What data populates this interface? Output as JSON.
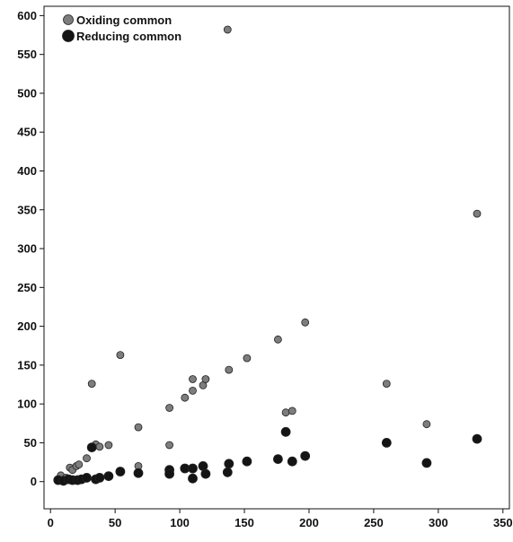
{
  "chart_data": {
    "type": "scatter",
    "title": "",
    "xlabel": "",
    "ylabel": "",
    "xlim": [
      -5,
      355
    ],
    "ylim": [
      -35,
      612
    ],
    "x_ticks": [
      0,
      50,
      100,
      150,
      200,
      250,
      300,
      350
    ],
    "y_ticks": [
      0,
      50,
      100,
      150,
      200,
      250,
      300,
      350,
      400,
      450,
      500,
      550,
      600
    ],
    "grid": false,
    "legend": {
      "position": "top-left",
      "entries": [
        "Oxiding common",
        "Reducing common"
      ]
    },
    "series": [
      {
        "name": "Oxiding common",
        "color": "#7d7d7d",
        "points": [
          [
            8,
            8
          ],
          [
            12,
            5
          ],
          [
            15,
            18
          ],
          [
            17,
            15
          ],
          [
            20,
            20
          ],
          [
            22,
            22
          ],
          [
            28,
            30
          ],
          [
            32,
            126
          ],
          [
            35,
            48
          ],
          [
            38,
            45
          ],
          [
            45,
            47
          ],
          [
            54,
            163
          ],
          [
            68,
            70
          ],
          [
            68,
            20
          ],
          [
            92,
            95
          ],
          [
            92,
            47
          ],
          [
            104,
            108
          ],
          [
            110,
            132
          ],
          [
            110,
            117
          ],
          [
            118,
            124
          ],
          [
            120,
            132
          ],
          [
            137,
            582
          ],
          [
            138,
            144
          ],
          [
            152,
            159
          ],
          [
            176,
            183
          ],
          [
            182,
            89
          ],
          [
            187,
            91
          ],
          [
            197,
            205
          ],
          [
            260,
            126
          ],
          [
            291,
            74
          ],
          [
            330,
            345
          ]
        ]
      },
      {
        "name": "Reducing common",
        "color": "#141414",
        "points": [
          [
            6,
            2
          ],
          [
            10,
            1
          ],
          [
            14,
            3
          ],
          [
            17,
            2
          ],
          [
            21,
            2
          ],
          [
            24,
            3
          ],
          [
            28,
            5
          ],
          [
            32,
            44
          ],
          [
            35,
            3
          ],
          [
            38,
            5
          ],
          [
            45,
            7
          ],
          [
            54,
            13
          ],
          [
            68,
            11
          ],
          [
            92,
            15
          ],
          [
            92,
            10
          ],
          [
            104,
            17
          ],
          [
            110,
            17
          ],
          [
            110,
            4
          ],
          [
            118,
            20
          ],
          [
            120,
            10
          ],
          [
            137,
            12
          ],
          [
            138,
            23
          ],
          [
            152,
            26
          ],
          [
            176,
            29
          ],
          [
            182,
            64
          ],
          [
            187,
            26
          ],
          [
            197,
            33
          ],
          [
            260,
            50
          ],
          [
            291,
            24
          ],
          [
            330,
            55
          ]
        ]
      }
    ]
  }
}
